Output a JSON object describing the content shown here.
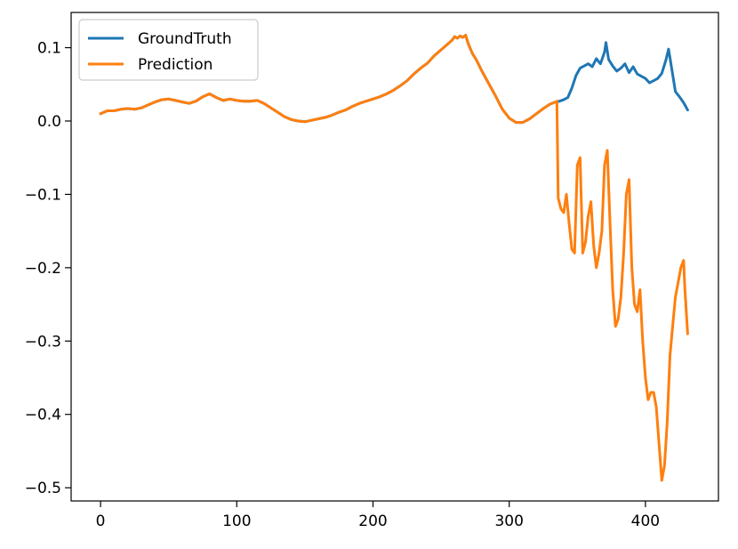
{
  "chart_data": {
    "type": "line",
    "title": "",
    "xlabel": "",
    "ylabel": "",
    "xlim": [
      -21.6,
      453.6
    ],
    "ylim": [
      -0.518,
      0.148
    ],
    "xticks": [
      0,
      100,
      200,
      300,
      400
    ],
    "xtick_labels": [
      "0",
      "100",
      "200",
      "300",
      "400"
    ],
    "yticks": [
      -0.5,
      -0.4,
      -0.3,
      -0.2,
      -0.1,
      0.0,
      0.1
    ],
    "ytick_labels": [
      "−0.5",
      "−0.4",
      "−0.3",
      "−0.2",
      "−0.1",
      "0.0",
      "0.1"
    ],
    "grid": false,
    "legend_position": "upper-left",
    "colors": {
      "GroundTruth": "#1f77b4",
      "Prediction": "#ff7f0e"
    },
    "series": [
      {
        "name": "GroundTruth",
        "x": [
          0,
          5,
          10,
          15,
          20,
          25,
          30,
          35,
          40,
          45,
          50,
          55,
          60,
          65,
          70,
          75,
          80,
          85,
          90,
          95,
          100,
          105,
          110,
          115,
          120,
          125,
          130,
          135,
          140,
          145,
          150,
          155,
          160,
          165,
          170,
          175,
          180,
          185,
          190,
          195,
          200,
          205,
          210,
          215,
          220,
          225,
          230,
          235,
          240,
          245,
          250,
          255,
          258,
          260,
          262,
          264,
          266,
          268,
          270,
          273,
          276,
          280,
          285,
          290,
          295,
          300,
          305,
          310,
          315,
          320,
          325,
          330,
          334,
          337,
          340,
          343,
          346,
          349,
          352,
          355,
          358,
          361,
          364,
          367,
          370,
          371,
          373,
          376,
          379,
          382,
          385,
          388,
          391,
          394,
          397,
          400,
          403,
          406,
          409,
          412,
          415,
          417,
          419,
          422,
          425,
          428,
          431
        ],
        "y": [
          0.01,
          0.014,
          0.014,
          0.016,
          0.017,
          0.016,
          0.018,
          0.022,
          0.026,
          0.029,
          0.03,
          0.028,
          0.026,
          0.024,
          0.027,
          0.033,
          0.037,
          0.032,
          0.028,
          0.03,
          0.028,
          0.027,
          0.027,
          0.028,
          0.024,
          0.018,
          0.012,
          0.006,
          0.002,
          0.0,
          -0.001,
          0.001,
          0.003,
          0.005,
          0.008,
          0.012,
          0.015,
          0.02,
          0.024,
          0.027,
          0.03,
          0.033,
          0.037,
          0.042,
          0.048,
          0.055,
          0.064,
          0.072,
          0.079,
          0.089,
          0.097,
          0.105,
          0.11,
          0.115,
          0.113,
          0.116,
          0.114,
          0.117,
          0.105,
          0.092,
          0.083,
          0.068,
          0.051,
          0.034,
          0.016,
          0.004,
          -0.002,
          -0.002,
          0.003,
          0.01,
          0.017,
          0.023,
          0.026,
          0.027,
          0.029,
          0.032,
          0.045,
          0.062,
          0.072,
          0.075,
          0.078,
          0.074,
          0.085,
          0.078,
          0.094,
          0.107,
          0.084,
          0.075,
          0.068,
          0.072,
          0.078,
          0.066,
          0.074,
          0.064,
          0.061,
          0.058,
          0.052,
          0.055,
          0.058,
          0.065,
          0.083,
          0.098,
          0.075,
          0.04,
          0.033,
          0.025,
          0.015
        ]
      },
      {
        "name": "Prediction",
        "x": [
          0,
          5,
          10,
          15,
          20,
          25,
          30,
          35,
          40,
          45,
          50,
          55,
          60,
          65,
          70,
          75,
          80,
          85,
          90,
          95,
          100,
          105,
          110,
          115,
          120,
          125,
          130,
          135,
          140,
          145,
          150,
          155,
          160,
          165,
          170,
          175,
          180,
          185,
          190,
          195,
          200,
          205,
          210,
          215,
          220,
          225,
          230,
          235,
          240,
          245,
          250,
          255,
          258,
          260,
          262,
          264,
          266,
          268,
          270,
          273,
          276,
          280,
          285,
          290,
          295,
          300,
          305,
          310,
          315,
          320,
          325,
          330,
          334,
          335,
          336,
          338,
          340,
          342,
          344,
          346,
          348,
          350,
          352,
          354,
          356,
          358,
          360,
          362,
          364,
          366,
          368,
          370,
          372,
          374,
          376,
          378,
          380,
          382,
          384,
          386,
          388,
          390,
          392,
          394,
          396,
          398,
          400,
          402,
          404,
          406,
          408,
          410,
          412,
          414,
          415,
          416,
          418,
          420,
          422,
          424,
          426,
          428,
          429,
          431
        ],
        "y": [
          0.01,
          0.014,
          0.014,
          0.016,
          0.017,
          0.016,
          0.018,
          0.022,
          0.026,
          0.029,
          0.03,
          0.028,
          0.026,
          0.024,
          0.027,
          0.033,
          0.037,
          0.032,
          0.028,
          0.03,
          0.028,
          0.027,
          0.027,
          0.028,
          0.024,
          0.018,
          0.012,
          0.006,
          0.002,
          0.0,
          -0.001,
          0.001,
          0.003,
          0.005,
          0.008,
          0.012,
          0.015,
          0.02,
          0.024,
          0.027,
          0.03,
          0.033,
          0.037,
          0.042,
          0.048,
          0.055,
          0.064,
          0.072,
          0.079,
          0.089,
          0.097,
          0.105,
          0.11,
          0.115,
          0.113,
          0.116,
          0.114,
          0.117,
          0.105,
          0.092,
          0.083,
          0.068,
          0.051,
          0.034,
          0.016,
          0.004,
          -0.002,
          -0.002,
          0.003,
          0.01,
          0.017,
          0.023,
          0.026,
          0.027,
          -0.105,
          -0.12,
          -0.125,
          -0.1,
          -0.14,
          -0.175,
          -0.18,
          -0.06,
          -0.05,
          -0.18,
          -0.165,
          -0.13,
          -0.11,
          -0.17,
          -0.2,
          -0.18,
          -0.15,
          -0.06,
          -0.04,
          -0.14,
          -0.23,
          -0.28,
          -0.27,
          -0.24,
          -0.18,
          -0.1,
          -0.08,
          -0.2,
          -0.25,
          -0.26,
          -0.23,
          -0.3,
          -0.35,
          -0.38,
          -0.37,
          -0.37,
          -0.39,
          -0.44,
          -0.49,
          -0.47,
          -0.44,
          -0.41,
          -0.32,
          -0.28,
          -0.24,
          -0.22,
          -0.2,
          -0.19,
          -0.23,
          -0.29
        ]
      }
    ]
  }
}
